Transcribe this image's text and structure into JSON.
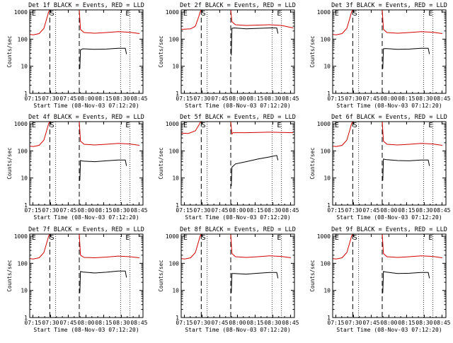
{
  "figure": {
    "ylabel": "Counts/sec",
    "xlabel": "Start Time (08-Nov-03 07:12:20)",
    "xticks": [
      "07:15",
      "07:30",
      "07:45",
      "08:00",
      "08:15",
      "08:30",
      "08:45"
    ],
    "yticks": [
      "1",
      "10",
      "100",
      "1000"
    ],
    "colors": {
      "events": "#000000",
      "lld": "#d40000",
      "axes": "#000000",
      "background": "#ffffff"
    },
    "marker_labels": [
      "E",
      "S",
      "E"
    ]
  },
  "chart_data": [
    {
      "type": "line",
      "title": "Det 1f BLACK = Events, RED = LLD",
      "xlabel": "Start Time (08-Nov-03 07:12:20)",
      "ylabel": "Counts/sec",
      "x_unit": "minutes after 07:12:20",
      "x_range": [
        0,
        96
      ],
      "ylim": [
        1,
        1200
      ],
      "y_scale": "log",
      "vlines_dashed": [
        17,
        42
      ],
      "vlines_dotted": [
        22,
        77,
        85
      ],
      "series": [
        {
          "name": "RED = LLD",
          "x": [
            0,
            3,
            8,
            12,
            15,
            16,
            17,
            42,
            43,
            46,
            55,
            65,
            75,
            85,
            93
          ],
          "y": [
            150,
            145,
            160,
            250,
            700,
            1000,
            1200,
            1200,
            230,
            175,
            165,
            175,
            190,
            180,
            160
          ]
        },
        {
          "name": "BLACK = Events",
          "x": [
            42.5,
            43,
            45,
            55,
            65,
            75,
            81,
            82
          ],
          "y": [
            8,
            40,
            44,
            42,
            43,
            46,
            46,
            28
          ]
        }
      ]
    },
    {
      "type": "line",
      "title": "Det 2f BLACK = Events, RED = LLD",
      "xlabel": "Start Time (08-Nov-03 07:12:20)",
      "ylabel": "Counts/sec",
      "x_unit": "minutes after 07:12:20",
      "x_range": [
        0,
        96
      ],
      "ylim": [
        1,
        1200
      ],
      "y_scale": "log",
      "vlines_dashed": [
        17,
        42
      ],
      "vlines_dotted": [
        22,
        77,
        85
      ],
      "series": [
        {
          "name": "RED = LLD",
          "x": [
            0,
            8,
            12,
            15,
            16,
            17,
            42,
            43,
            46,
            55,
            65,
            75,
            85,
            95
          ],
          "y": [
            230,
            240,
            300,
            700,
            1000,
            1200,
            1200,
            440,
            340,
            320,
            330,
            340,
            320,
            260
          ]
        },
        {
          "name": "BLACK = Events",
          "x": [
            42.5,
            43,
            45,
            55,
            65,
            75,
            81,
            82
          ],
          "y": [
            25,
            250,
            260,
            240,
            250,
            260,
            260,
            160
          ]
        }
      ]
    },
    {
      "type": "line",
      "title": "Det 3f BLACK = Events, RED = LLD",
      "xlabel": "Start Time (08-Nov-03 07:12:20)",
      "ylabel": "Counts/sec",
      "x_unit": "minutes after 07:12:20",
      "x_range": [
        0,
        96
      ],
      "ylim": [
        1,
        1200
      ],
      "y_scale": "log",
      "vlines_dashed": [
        17,
        42
      ],
      "vlines_dotted": [
        22,
        77,
        85
      ],
      "series": [
        {
          "name": "RED = LLD",
          "x": [
            0,
            3,
            8,
            12,
            15,
            16,
            17,
            42,
            43,
            46,
            55,
            65,
            75,
            85,
            93
          ],
          "y": [
            150,
            145,
            160,
            250,
            700,
            1000,
            1200,
            1200,
            230,
            175,
            165,
            175,
            190,
            180,
            160
          ]
        },
        {
          "name": "BLACK = Events",
          "x": [
            42.5,
            43,
            45,
            55,
            65,
            75,
            81,
            82
          ],
          "y": [
            8,
            44,
            45,
            42,
            43,
            46,
            46,
            28
          ]
        }
      ]
    },
    {
      "type": "line",
      "title": "Det 4f BLACK = Events, RED = LLD",
      "xlabel": "Start Time (08-Nov-03 07:12:20)",
      "ylabel": "Counts/sec",
      "x_unit": "minutes after 07:12:20",
      "x_range": [
        0,
        96
      ],
      "ylim": [
        1,
        1200
      ],
      "y_scale": "log",
      "vlines_dashed": [
        17,
        42
      ],
      "vlines_dotted": [
        22,
        77,
        85
      ],
      "series": [
        {
          "name": "RED = LLD",
          "x": [
            0,
            3,
            8,
            12,
            15,
            16,
            17,
            42,
            43,
            46,
            55,
            65,
            75,
            85,
            93
          ],
          "y": [
            150,
            145,
            160,
            250,
            700,
            1000,
            1200,
            1200,
            230,
            175,
            165,
            175,
            190,
            180,
            160
          ]
        },
        {
          "name": "BLACK = Events",
          "x": [
            42.5,
            43,
            45,
            55,
            65,
            75,
            81,
            82
          ],
          "y": [
            8,
            44,
            42,
            40,
            43,
            46,
            46,
            28
          ]
        }
      ]
    },
    {
      "type": "line",
      "title": "Det 5f BLACK = Events, RED = LLD",
      "xlabel": "Start Time (08-Nov-03 07:12:20)",
      "ylabel": "Counts/sec",
      "x_unit": "minutes after 07:12:20",
      "x_range": [
        0,
        96
      ],
      "ylim": [
        1,
        1200
      ],
      "y_scale": "log",
      "vlines_dashed": [
        17,
        42
      ],
      "vlines_dotted": [
        22,
        77,
        85
      ],
      "series": [
        {
          "name": "RED = LLD",
          "x": [
            0,
            6,
            12,
            15,
            16,
            17,
            42,
            43,
            44,
            55,
            65,
            75,
            85,
            95
          ],
          "y": [
            450,
            440,
            550,
            900,
            1100,
            1200,
            1200,
            420,
            470,
            470,
            480,
            490,
            480,
            470
          ]
        },
        {
          "name": "BLACK = Events",
          "x": [
            42.5,
            43,
            46,
            55,
            65,
            75,
            81,
            82
          ],
          "y": [
            5,
            25,
            33,
            40,
            50,
            60,
            68,
            45
          ]
        }
      ]
    },
    {
      "type": "line",
      "title": "Det 6f BLACK = Events, RED = LLD",
      "xlabel": "Start Time (08-Nov-03 07:12:20)",
      "ylabel": "Counts/sec",
      "x_unit": "minutes after 07:12:20",
      "x_range": [
        0,
        96
      ],
      "ylim": [
        1,
        1200
      ],
      "y_scale": "log",
      "vlines_dashed": [
        17,
        42
      ],
      "vlines_dotted": [
        22,
        77,
        85
      ],
      "series": [
        {
          "name": "RED = LLD",
          "x": [
            0,
            3,
            8,
            12,
            15,
            16,
            17,
            42,
            43,
            46,
            55,
            65,
            75,
            85,
            93
          ],
          "y": [
            150,
            145,
            160,
            250,
            700,
            1000,
            1200,
            1200,
            230,
            175,
            165,
            175,
            190,
            180,
            160
          ]
        },
        {
          "name": "BLACK = Events",
          "x": [
            42.5,
            43,
            45,
            55,
            65,
            75,
            81,
            82
          ],
          "y": [
            8,
            50,
            48,
            44,
            43,
            46,
            46,
            28
          ]
        }
      ]
    },
    {
      "type": "line",
      "title": "Det 7f BLACK = Events, RED = LLD",
      "xlabel": "Start Time (08-Nov-03 07:12:20)",
      "ylabel": "Counts/sec",
      "x_unit": "minutes after 07:12:20",
      "x_range": [
        0,
        96
      ],
      "ylim": [
        1,
        1200
      ],
      "y_scale": "log",
      "vlines_dashed": [
        17,
        42
      ],
      "vlines_dotted": [
        22,
        77,
        85
      ],
      "series": [
        {
          "name": "RED = LLD",
          "x": [
            0,
            3,
            8,
            12,
            15,
            16,
            17,
            42,
            43,
            46,
            55,
            65,
            75,
            85,
            93
          ],
          "y": [
            150,
            145,
            160,
            250,
            700,
            1000,
            1200,
            1200,
            200,
            165,
            160,
            170,
            185,
            175,
            160
          ]
        },
        {
          "name": "BLACK = Events",
          "x": [
            42.5,
            43,
            45,
            55,
            65,
            75,
            81,
            82
          ],
          "y": [
            8,
            50,
            48,
            44,
            47,
            52,
            52,
            30
          ]
        }
      ]
    },
    {
      "type": "line",
      "title": "Det 8f BLACK = Events, RED = LLD",
      "xlabel": "Start Time (08-Nov-03 07:12:20)",
      "ylabel": "Counts/sec",
      "x_unit": "minutes after 07:12:20",
      "x_range": [
        0,
        96
      ],
      "ylim": [
        1,
        1200
      ],
      "y_scale": "log",
      "vlines_dashed": [
        17,
        42
      ],
      "vlines_dotted": [
        22,
        77,
        85
      ],
      "series": [
        {
          "name": "RED = LLD",
          "x": [
            0,
            3,
            8,
            12,
            15,
            16,
            17,
            42,
            43,
            46,
            55,
            65,
            75,
            85,
            93
          ],
          "y": [
            150,
            145,
            160,
            250,
            700,
            1000,
            1200,
            1200,
            230,
            175,
            165,
            175,
            190,
            180,
            160
          ]
        },
        {
          "name": "BLACK = Events",
          "x": [
            42.5,
            43,
            45,
            55,
            65,
            75,
            81,
            82
          ],
          "y": [
            8,
            42,
            42,
            40,
            43,
            46,
            46,
            28
          ]
        }
      ]
    },
    {
      "type": "line",
      "title": "Det 9f BLACK = Events, RED = LLD",
      "xlabel": "Start Time (08-Nov-03 07:12:20)",
      "ylabel": "Counts/sec",
      "x_unit": "minutes after 07:12:20",
      "x_range": [
        0,
        96
      ],
      "ylim": [
        1,
        1200
      ],
      "y_scale": "log",
      "vlines_dashed": [
        17,
        42
      ],
      "vlines_dotted": [
        22,
        77,
        85
      ],
      "series": [
        {
          "name": "RED = LLD",
          "x": [
            0,
            3,
            8,
            12,
            15,
            16,
            17,
            42,
            43,
            46,
            55,
            65,
            75,
            85,
            93
          ],
          "y": [
            150,
            145,
            160,
            250,
            700,
            1000,
            1200,
            1200,
            230,
            175,
            165,
            175,
            190,
            180,
            160
          ]
        },
        {
          "name": "BLACK = Events",
          "x": [
            42.5,
            43,
            45,
            55,
            65,
            75,
            81,
            82
          ],
          "y": [
            8,
            50,
            48,
            42,
            43,
            46,
            46,
            28
          ]
        }
      ]
    }
  ]
}
